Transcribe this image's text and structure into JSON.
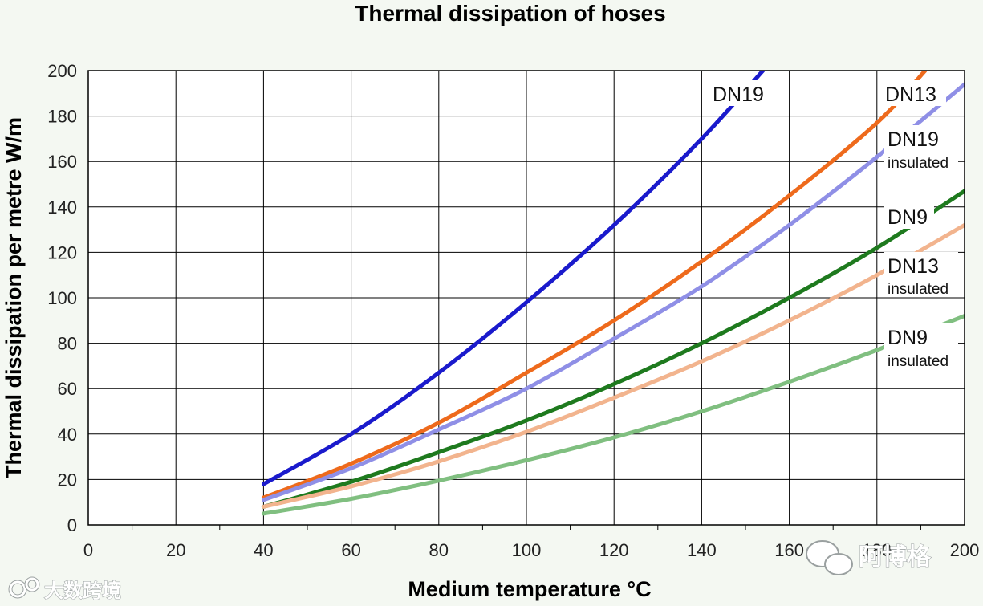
{
  "chart_data": {
    "type": "line",
    "title": "Thermal dissipation  of hoses",
    "xlabel": "Medium temperature  °C",
    "ylabel": "Thermal dissipation per metre  W/m",
    "xlim": [
      0,
      200
    ],
    "ylim": [
      0,
      200
    ],
    "xticks": [
      "0",
      "20",
      "40",
      "60",
      "80",
      "100",
      "120",
      "140",
      "160",
      "180",
      "200"
    ],
    "yticks": [
      "0",
      "20",
      "40",
      "60",
      "80",
      "100",
      "120",
      "140",
      "160",
      "180",
      "200"
    ],
    "grid": true,
    "series": [
      {
        "name": "DN19",
        "subname": "",
        "color": "#1a1acc",
        "x": [
          40,
          60,
          80,
          100,
          120,
          140,
          154
        ],
        "y": [
          18,
          40,
          67,
          98,
          132,
          170,
          200
        ]
      },
      {
        "name": "DN13",
        "subname": "",
        "color": "#ee6a1c",
        "x": [
          40,
          60,
          80,
          100,
          120,
          140,
          160,
          180,
          191
        ],
        "y": [
          12,
          27,
          45,
          67,
          90,
          116,
          145,
          177,
          200
        ]
      },
      {
        "name": "DN19",
        "subname": "insulated",
        "color": "#8f8fe6",
        "x": [
          40,
          60,
          80,
          100,
          120,
          140,
          160,
          180,
          200
        ],
        "y": [
          11,
          25,
          42,
          60,
          82,
          105,
          132,
          162,
          194
        ]
      },
      {
        "name": "DN9",
        "subname": "",
        "color": "#1e7a1e",
        "x": [
          40,
          60,
          80,
          100,
          120,
          140,
          160,
          180,
          200
        ],
        "y": [
          8,
          19,
          32,
          46,
          62,
          80,
          100,
          122,
          147
        ]
      },
      {
        "name": "DN13",
        "subname": "insulated",
        "color": "#f2b48e",
        "x": [
          40,
          60,
          80,
          100,
          120,
          140,
          160,
          180,
          200
        ],
        "y": [
          8,
          17,
          28,
          41,
          56,
          72,
          90,
          110,
          132
        ]
      },
      {
        "name": "DN9",
        "subname": "insulated",
        "color": "#80bf80",
        "x": [
          40,
          60,
          80,
          100,
          120,
          140,
          160,
          180,
          200
        ],
        "y": [
          5,
          11.5,
          19.5,
          28.5,
          38.5,
          50,
          63,
          77,
          92
        ]
      }
    ]
  },
  "watermarks": {
    "left": "大数跨境",
    "right": "阿博格"
  },
  "colors": {
    "background": "#f4f8f2",
    "plot_background": "#ffffff",
    "grid": "#000000"
  }
}
